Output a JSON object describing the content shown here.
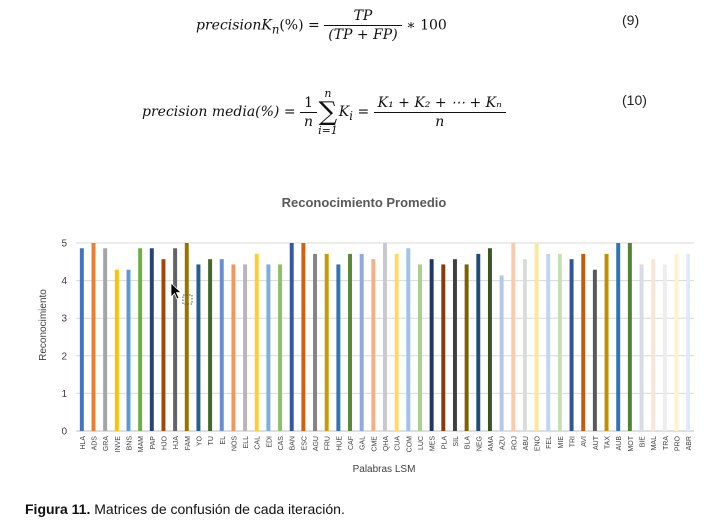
{
  "equations": {
    "eq9": {
      "lhs": "precisionK",
      "lhs_sub": "n",
      "lhs_tail": "(%) =",
      "num": "TP",
      "den": "(TP + FP)",
      "tail": "∗ 100",
      "number": "(9)"
    },
    "eq10": {
      "lhs": "precision media(%) =",
      "one": "1",
      "n": "n",
      "sum_top": "n",
      "sum_bottom": "i=1",
      "sum_sym": "∑",
      "term": "K",
      "term_sub": "i",
      "eq": "=",
      "num": "K₁ + K₂ + ⋯ + Kₙ",
      "den": "n",
      "number": "(10)"
    }
  },
  "caption": {
    "label": "Figura 11.",
    "text": " Matrices de confusión de cada iteración."
  },
  "chart_data": {
    "type": "bar",
    "title": "Reconocimiento Promedio",
    "xlabel": "Palabras LSM",
    "ylabel": "Reconocimiento",
    "ylim": [
      0,
      5
    ],
    "yticks": [
      0,
      1,
      2,
      3,
      4,
      5
    ],
    "grid": true,
    "legend": "none",
    "categories": [
      "HLA",
      "ADS",
      "GRA",
      "INVE",
      "BNS",
      "MAM",
      "PAP",
      "HJO",
      "HJA",
      "FAM",
      "YO",
      "TU",
      "EL",
      "NOS",
      "ELL",
      "CAL",
      "EDI",
      "CAS",
      "BAN",
      "ESC",
      "AGU",
      "FRU",
      "HUE",
      "CAF",
      "GAL",
      "CME",
      "QHA",
      "CUA",
      "COM",
      "LUC",
      "MES",
      "PLA",
      "SIL",
      "BLA",
      "NEG",
      "AMA",
      "AZU",
      "ROJ",
      "ABU",
      "ENO",
      "FEL",
      "MIE",
      "TRI",
      "AVI",
      "AUT",
      "TAX",
      "AUB",
      "MOT",
      "BIE",
      "MAL",
      "TRA",
      "PRO",
      "ABR"
    ],
    "values": [
      4.86,
      5,
      4.86,
      4.29,
      4.29,
      4.86,
      4.86,
      4.57,
      4.86,
      5,
      4.43,
      4.57,
      4.57,
      4.43,
      4.43,
      4.71,
      4.43,
      4.43,
      5,
      5,
      4.71,
      4.71,
      4.43,
      4.71,
      4.71,
      4.57,
      5,
      4.71,
      4.86,
      4.43,
      4.57,
      4.43,
      4.57,
      4.43,
      4.71,
      4.86,
      4.14,
      5,
      4.57,
      5,
      4.71,
      4.71,
      4.57,
      4.71,
      4.29,
      4.71,
      5,
      5,
      4.43,
      4.57,
      4.43,
      4.71,
      4.71
    ],
    "colors": [
      "#4472C4",
      "#ED7D31",
      "#A5A5A5",
      "#FFC000",
      "#5B9BD5",
      "#70AD47",
      "#264478",
      "#9E480E",
      "#636363",
      "#997300",
      "#255E91",
      "#43682B",
      "#698ED0",
      "#F1975A",
      "#B7B7B7",
      "#FFCD33",
      "#7CAFDD",
      "#8CC168",
      "#335AA1",
      "#D26012",
      "#848484",
      "#CC9A00",
      "#3275B0",
      "#5A8A39",
      "#8FAADC",
      "#F4B183",
      "#C9C9C9",
      "#FFD966",
      "#9DC3E6",
      "#A9D18E",
      "#1F3864",
      "#843C0C",
      "#404040",
      "#7F6000",
      "#1F4E79",
      "#375623",
      "#B4C7E7",
      "#F8CBAD",
      "#DBDBDB",
      "#FFE699",
      "#BDD7EE",
      "#C5E0B4",
      "#2F5597",
      "#C55A11",
      "#595959",
      "#BF9000",
      "#2E75B6",
      "#548235",
      "#D6DCE5",
      "#FBE5D6",
      "#EDEDED",
      "#FFF2CC",
      "#DEEBF7"
    ]
  }
}
